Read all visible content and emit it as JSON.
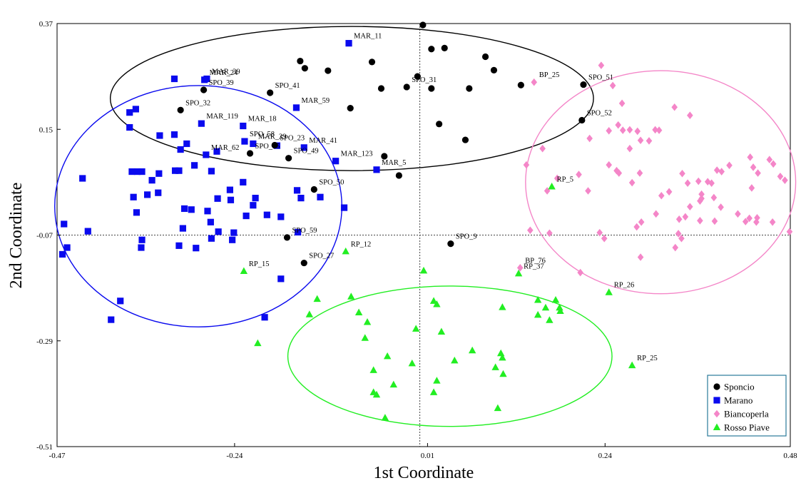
{
  "chart_data": {
    "type": "scatter",
    "xlabel": "1st Coordinate",
    "ylabel": "2nd Coordinate",
    "xlim": [
      -0.47,
      0.48
    ],
    "ylim": [
      -0.51,
      0.37
    ],
    "xticks": [
      "-0.47",
      "-0.24",
      "0.01",
      "0.24",
      "0.48"
    ],
    "yticks": [
      "0.37",
      "0.15",
      "-0.07",
      "-0.29",
      "-0.51"
    ],
    "xtick_values": [
      -0.47,
      -0.24,
      0.01,
      0.24,
      0.48
    ],
    "ytick_values": [
      0.37,
      0.15,
      -0.07,
      -0.29,
      -0.51
    ],
    "reference_lines": {
      "x": 0.0,
      "y": -0.07
    },
    "legend": {
      "placement": "bottom-right",
      "entries": [
        "Sponcio",
        "Marano",
        "Biancoperla",
        "Rosso Piave"
      ]
    },
    "series": [
      {
        "name": "Sponcio",
        "marker": "circle",
        "color": "#000000",
        "ellipse": {
          "cx": -0.088,
          "cy": 0.214,
          "rx": 0.313,
          "ry": 0.15,
          "rot": 0
        },
        "points": [
          [
            0.004,
            0.367
          ],
          [
            0.015,
            0.317
          ],
          [
            0.032,
            0.319
          ],
          [
            -0.155,
            0.292
          ],
          [
            -0.149,
            0.277
          ],
          [
            -0.119,
            0.272
          ],
          [
            -0.062,
            0.29
          ],
          [
            -0.003,
            0.26
          ],
          [
            0.085,
            0.301
          ],
          [
            0.096,
            0.273
          ],
          [
            0.131,
            0.242
          ],
          [
            -0.05,
            0.235
          ],
          [
            -0.017,
            0.238
          ],
          [
            0.015,
            0.235
          ],
          [
            0.064,
            0.235
          ],
          [
            -0.09,
            0.194
          ],
          [
            0.025,
            0.161
          ],
          [
            0.059,
            0.128
          ],
          [
            -0.046,
            0.094
          ],
          [
            -0.027,
            0.054
          ],
          [
            0.212,
            0.243
          ],
          [
            0.21,
            0.169
          ],
          [
            -0.28,
            0.232
          ],
          [
            -0.31,
            0.19
          ],
          [
            -0.194,
            0.226
          ],
          [
            -0.188,
            0.117
          ],
          [
            -0.22,
            0.1
          ],
          [
            -0.17,
            0.09
          ],
          [
            -0.137,
            0.025
          ],
          [
            -0.172,
            -0.075
          ],
          [
            -0.15,
            -0.128
          ],
          [
            0.04,
            -0.088
          ]
        ],
        "labels": [
          {
            "i": 20,
            "text": "SPO_51"
          },
          {
            "i": 21,
            "text": "SPO_52"
          },
          {
            "i": 22,
            "text": "SPO_39"
          },
          {
            "i": 23,
            "text": "SPO_32"
          },
          {
            "i": 24,
            "text": "SPO_41"
          },
          {
            "i": 25,
            "text": "SPO_23"
          },
          {
            "i": 26,
            "text": "SPO_35"
          },
          {
            "i": 27,
            "text": "SPO_49"
          },
          {
            "i": 28,
            "text": "SPO_50"
          },
          {
            "i": 29,
            "text": "SPO_59"
          },
          {
            "i": 30,
            "text": "SPO_27"
          },
          {
            "i": 31,
            "text": "SPO_9"
          },
          {
            "i": 12,
            "text": "SPO_31"
          }
        ]
      },
      {
        "name": "Marano",
        "marker": "square",
        "color": "#0a0aee",
        "ellipse": {
          "cx": -0.287,
          "cy": -0.01,
          "rx": 0.186,
          "ry": 0.251,
          "rot": 0
        },
        "points": [
          [
            -0.092,
            0.329
          ],
          [
            -0.318,
            0.255
          ],
          [
            -0.276,
            0.255
          ],
          [
            -0.279,
            0.253
          ],
          [
            -0.368,
            0.192
          ],
          [
            -0.376,
            0.185
          ],
          [
            -0.283,
            0.162
          ],
          [
            -0.376,
            0.154
          ],
          [
            -0.337,
            0.137
          ],
          [
            -0.318,
            0.139
          ],
          [
            -0.302,
            0.12
          ],
          [
            -0.31,
            0.108
          ],
          [
            -0.277,
            0.097
          ],
          [
            -0.263,
            0.104
          ],
          [
            -0.229,
            0.157
          ],
          [
            -0.227,
            0.125
          ],
          [
            -0.216,
            0.12
          ],
          [
            -0.185,
            0.116
          ],
          [
            -0.16,
            0.195
          ],
          [
            -0.15,
            0.112
          ],
          [
            -0.109,
            0.084
          ],
          [
            -0.056,
            0.066
          ],
          [
            -0.373,
            0.062
          ],
          [
            -0.366,
            0.062
          ],
          [
            -0.36,
            0.062
          ],
          [
            -0.338,
            0.058
          ],
          [
            -0.317,
            0.064
          ],
          [
            -0.312,
            0.064
          ],
          [
            -0.292,
            0.075
          ],
          [
            -0.27,
            0.063
          ],
          [
            -0.437,
            0.048
          ],
          [
            -0.347,
            0.044
          ],
          [
            -0.353,
            0.014
          ],
          [
            -0.339,
            0.018
          ],
          [
            -0.371,
            0.009
          ],
          [
            -0.367,
            -0.023
          ],
          [
            -0.305,
            -0.015
          ],
          [
            -0.262,
            0.006
          ],
          [
            -0.245,
            0.003
          ],
          [
            -0.229,
            0.04
          ],
          [
            -0.246,
            0.024
          ],
          [
            -0.296,
            -0.017
          ],
          [
            -0.275,
            -0.02
          ],
          [
            -0.271,
            -0.043
          ],
          [
            -0.261,
            -0.063
          ],
          [
            -0.307,
            -0.056
          ],
          [
            -0.27,
            -0.077
          ],
          [
            -0.241,
            -0.065
          ],
          [
            -0.225,
            -0.03
          ],
          [
            -0.216,
            -0.008
          ],
          [
            -0.213,
            0.007
          ],
          [
            -0.198,
            -0.028
          ],
          [
            -0.18,
            -0.032
          ],
          [
            -0.159,
            0.023
          ],
          [
            -0.154,
            0.007
          ],
          [
            -0.129,
            0.009
          ],
          [
            -0.098,
            -0.013
          ],
          [
            -0.158,
            -0.064
          ],
          [
            -0.243,
            -0.08
          ],
          [
            -0.43,
            -0.062
          ],
          [
            -0.461,
            -0.047
          ],
          [
            -0.457,
            -0.096
          ],
          [
            -0.463,
            -0.11
          ],
          [
            -0.36,
            -0.08
          ],
          [
            -0.361,
            -0.096
          ],
          [
            -0.312,
            -0.092
          ],
          [
            -0.29,
            -0.097
          ],
          [
            -0.18,
            -0.161
          ],
          [
            -0.201,
            -0.241
          ],
          [
            -0.388,
            -0.207
          ],
          [
            -0.4,
            -0.246
          ]
        ],
        "labels": [
          {
            "i": 0,
            "text": "MAR_11"
          },
          {
            "i": 2,
            "text": "MAR_39"
          },
          {
            "i": 3,
            "text": "MAR_24"
          },
          {
            "i": 14,
            "text": "MAR_18"
          },
          {
            "i": 6,
            "text": "MAR_119"
          },
          {
            "i": 18,
            "text": "MAR_59"
          },
          {
            "i": 16,
            "text": "MAR_29"
          },
          {
            "i": 12,
            "text": "MAR_62"
          },
          {
            "i": 19,
            "text": "MAR_41"
          },
          {
            "i": 20,
            "text": "MAR_123"
          },
          {
            "i": 21,
            "text": "MAR_5"
          },
          {
            "i": 15,
            "text": "SPO_58"
          }
        ]
      },
      {
        "name": "Biancoperla",
        "marker": "diamond",
        "color": "#f486c8",
        "ellipse": {
          "cx": 0.312,
          "cy": 0.04,
          "rx": 0.175,
          "ry": 0.232,
          "rot": 0
        },
        "points": [
          [
            0.235,
            0.283
          ],
          [
            0.148,
            0.248
          ],
          [
            0.25,
            0.241
          ],
          [
            0.262,
            0.204
          ],
          [
            0.33,
            0.196
          ],
          [
            0.35,
            0.179
          ],
          [
            0.257,
            0.159
          ],
          [
            0.272,
            0.149
          ],
          [
            0.263,
            0.148
          ],
          [
            0.282,
            0.146
          ],
          [
            0.305,
            0.149
          ],
          [
            0.31,
            0.148
          ],
          [
            0.286,
            0.127
          ],
          [
            0.297,
            0.126
          ],
          [
            0.245,
            0.147
          ],
          [
            0.22,
            0.131
          ],
          [
            0.159,
            0.11
          ],
          [
            0.272,
            0.11
          ],
          [
            0.138,
            0.076
          ],
          [
            0.245,
            0.076
          ],
          [
            0.255,
            0.064
          ],
          [
            0.258,
            0.059
          ],
          [
            0.285,
            0.059
          ],
          [
            0.206,
            0.056
          ],
          [
            0.178,
            0.048
          ],
          [
            0.165,
            0.022
          ],
          [
            0.218,
            0.022
          ],
          [
            0.275,
            0.039
          ],
          [
            0.34,
            0.058
          ],
          [
            0.347,
            0.038
          ],
          [
            0.361,
            0.042
          ],
          [
            0.365,
            0.015
          ],
          [
            0.373,
            0.041
          ],
          [
            0.378,
            0.038
          ],
          [
            0.401,
            0.075
          ],
          [
            0.385,
            0.065
          ],
          [
            0.391,
            0.062
          ],
          [
            0.428,
            0.092
          ],
          [
            0.432,
            0.071
          ],
          [
            0.438,
            0.059
          ],
          [
            0.43,
            0.028
          ],
          [
            0.453,
            0.087
          ],
          [
            0.458,
            0.078
          ],
          [
            0.467,
            0.052
          ],
          [
            0.473,
            0.044
          ],
          [
            0.323,
            0.02
          ],
          [
            0.313,
            0.012
          ],
          [
            0.365,
            0.006
          ],
          [
            0.381,
            0.008
          ],
          [
            0.363,
            0.001
          ],
          [
            0.35,
            -0.011
          ],
          [
            0.344,
            -0.032
          ],
          [
            0.336,
            -0.037
          ],
          [
            0.306,
            -0.026
          ],
          [
            0.39,
            -0.012
          ],
          [
            0.427,
            -0.035
          ],
          [
            0.436,
            -0.043
          ],
          [
            0.457,
            -0.043
          ],
          [
            0.422,
            -0.042
          ],
          [
            0.437,
            -0.034
          ],
          [
            0.479,
            -0.063
          ],
          [
            0.412,
            -0.026
          ],
          [
            0.382,
            -0.041
          ],
          [
            0.363,
            -0.04
          ],
          [
            0.287,
            -0.043
          ],
          [
            0.281,
            -0.053
          ],
          [
            0.233,
            -0.065
          ],
          [
            0.239,
            -0.077
          ],
          [
            0.168,
            -0.066
          ],
          [
            0.143,
            -0.06
          ],
          [
            0.335,
            -0.067
          ],
          [
            0.339,
            -0.077
          ],
          [
            0.331,
            -0.096
          ],
          [
            0.286,
            -0.116
          ],
          [
            0.208,
            -0.148
          ],
          [
            0.13,
            -0.138
          ]
        ],
        "labels": [
          {
            "i": 1,
            "text": "BP_25"
          },
          {
            "i": 75,
            "text": "BP_76"
          }
        ]
      },
      {
        "name": "Rosso Piave",
        "marker": "triangle",
        "color": "#22ee22",
        "ellipse": {
          "cx": 0.039,
          "cy": -0.322,
          "rx": 0.21,
          "ry": 0.146,
          "rot": 0
        },
        "points": [
          [
            0.171,
            0.031
          ],
          [
            -0.096,
            -0.104
          ],
          [
            -0.228,
            -0.145
          ],
          [
            0.005,
            -0.144
          ],
          [
            0.128,
            -0.15
          ],
          [
            0.245,
            -0.189
          ],
          [
            -0.133,
            -0.203
          ],
          [
            -0.089,
            -0.198
          ],
          [
            0.018,
            -0.207
          ],
          [
            0.022,
            -0.214
          ],
          [
            0.107,
            -0.22
          ],
          [
            -0.143,
            -0.235
          ],
          [
            -0.079,
            -0.231
          ],
          [
            0.153,
            -0.205
          ],
          [
            0.163,
            -0.221
          ],
          [
            0.176,
            -0.205
          ],
          [
            0.181,
            -0.221
          ],
          [
            0.182,
            -0.228
          ],
          [
            0.153,
            -0.236
          ],
          [
            0.168,
            -0.247
          ],
          [
            -0.068,
            -0.251
          ],
          [
            -0.005,
            -0.265
          ],
          [
            0.028,
            -0.271
          ],
          [
            -0.21,
            -0.295
          ],
          [
            -0.071,
            -0.284
          ],
          [
            -0.042,
            -0.322
          ],
          [
            0.068,
            -0.31
          ],
          [
            0.105,
            -0.316
          ],
          [
            0.107,
            -0.325
          ],
          [
            0.045,
            -0.331
          ],
          [
            -0.01,
            -0.337
          ],
          [
            -0.06,
            -0.351
          ],
          [
            0.098,
            -0.345
          ],
          [
            0.108,
            -0.359
          ],
          [
            0.022,
            -0.373
          ],
          [
            -0.034,
            -0.381
          ],
          [
            0.018,
            -0.397
          ],
          [
            -0.06,
            -0.397
          ],
          [
            -0.056,
            -0.402
          ],
          [
            0.101,
            -0.43
          ],
          [
            -0.045,
            -0.45
          ],
          [
            0.275,
            -0.341
          ]
        ],
        "labels": [
          {
            "i": 0,
            "text": "RP_5"
          },
          {
            "i": 1,
            "text": "RP_12"
          },
          {
            "i": 2,
            "text": "RP_15"
          },
          {
            "i": 4,
            "text": "RP_37"
          },
          {
            "i": 5,
            "text": "RP_26"
          },
          {
            "i": 41,
            "text": "RP_25"
          }
        ]
      }
    ]
  }
}
